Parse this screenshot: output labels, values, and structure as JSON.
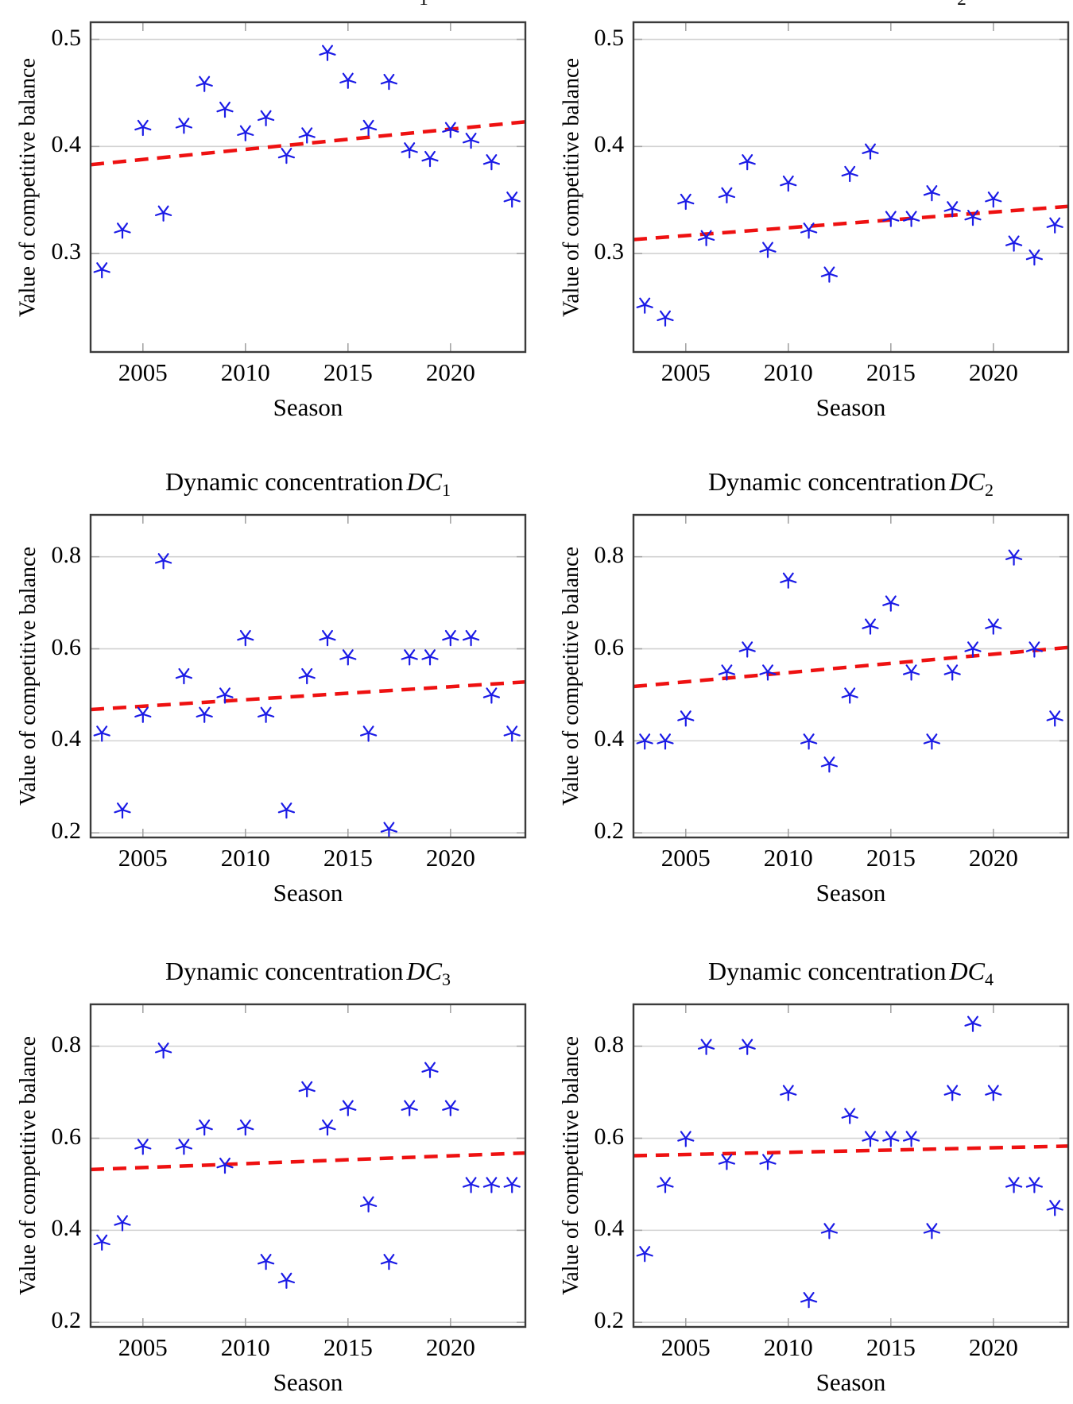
{
  "labels": {
    "ylabel": "Value of competitive balance",
    "xlabel": "Season"
  },
  "colors": {
    "background": "#ffffff",
    "marker": "#1b1be6",
    "trend": "#ee1111",
    "grid": "#d2d2d2",
    "frame": "#3b3b3b",
    "tick": "#a5a5a5",
    "text": "#000000"
  },
  "marker_shape": "five-ray-star",
  "top_edge_fragments": [
    {
      "text": "1",
      "x": 533
    },
    {
      "text": "2",
      "x": 1210
    }
  ],
  "chart_data": [
    {
      "id": "top-left",
      "type": "scatter",
      "title": null,
      "xlabel": "Season",
      "ylabel": "Value of competitive balance",
      "x": [
        2003,
        2004,
        2005,
        2006,
        2007,
        2008,
        2009,
        2010,
        2011,
        2012,
        2013,
        2014,
        2015,
        2016,
        2017,
        2018,
        2019,
        2020,
        2021,
        2022,
        2023
      ],
      "values": [
        0.285,
        0.322,
        0.418,
        0.338,
        0.42,
        0.459,
        0.435,
        0.413,
        0.427,
        0.392,
        0.411,
        0.488,
        0.462,
        0.418,
        0.461,
        0.397,
        0.389,
        0.416,
        0.406,
        0.386,
        0.351
      ],
      "trend": {
        "type": "linear-dashed",
        "start": 0.383,
        "end": 0.423
      },
      "xlim": [
        2002.45,
        2023.65
      ],
      "ylim": [
        0.208,
        0.516
      ],
      "yticks": [
        0.3,
        0.4,
        0.5
      ],
      "ytick_labels": [
        "0.3",
        "0.4",
        "0.5"
      ],
      "xticks": [
        2005,
        2010,
        2015,
        2020
      ],
      "xtick_labels": [
        "2005",
        "2010",
        "2015",
        "2020"
      ],
      "grid": "horizontal-only"
    },
    {
      "id": "top-right",
      "type": "scatter",
      "title": null,
      "xlabel": "Season",
      "ylabel": "Value of competitive balance",
      "x": [
        2003,
        2004,
        2005,
        2006,
        2007,
        2008,
        2009,
        2010,
        2011,
        2012,
        2013,
        2014,
        2015,
        2016,
        2017,
        2018,
        2019,
        2020,
        2021,
        2022,
        2023
      ],
      "values": [
        0.252,
        0.24,
        0.349,
        0.315,
        0.355,
        0.386,
        0.304,
        0.366,
        0.322,
        0.281,
        0.375,
        0.396,
        0.333,
        0.333,
        0.357,
        0.342,
        0.334,
        0.351,
        0.31,
        0.297,
        0.327
      ],
      "trend": {
        "type": "linear-dashed",
        "start": 0.313,
        "end": 0.344
      },
      "xlim": [
        2002.45,
        2023.65
      ],
      "ylim": [
        0.208,
        0.516
      ],
      "yticks": [
        0.3,
        0.4,
        0.5
      ],
      "ytick_labels": [
        "0.3",
        "0.4",
        "0.5"
      ],
      "xticks": [
        2005,
        2010,
        2015,
        2020
      ],
      "xtick_labels": [
        "2005",
        "2010",
        "2015",
        "2020"
      ],
      "grid": "horizontal-only"
    },
    {
      "id": "dc1",
      "type": "scatter",
      "title": {
        "prefix": "Dynamic concentration",
        "math": "DC",
        "sub": "1"
      },
      "xlabel": "Season",
      "ylabel": "Value of competitive balance",
      "x": [
        2003,
        2004,
        2005,
        2006,
        2007,
        2008,
        2009,
        2010,
        2011,
        2012,
        2013,
        2014,
        2015,
        2016,
        2017,
        2018,
        2019,
        2020,
        2021,
        2022,
        2023
      ],
      "values": [
        0.417,
        0.25,
        0.458,
        0.792,
        0.542,
        0.458,
        0.5,
        0.625,
        0.458,
        0.25,
        0.542,
        0.625,
        0.583,
        0.417,
        0.208,
        0.583,
        0.583,
        0.625,
        0.625,
        0.5,
        0.417
      ],
      "trend": {
        "type": "linear-dashed",
        "start": 0.468,
        "end": 0.528
      },
      "xlim": [
        2002.45,
        2023.65
      ],
      "ylim": [
        0.19,
        0.891
      ],
      "yticks": [
        0.2,
        0.4,
        0.6,
        0.8
      ],
      "ytick_labels": [
        "0.2",
        "0.4",
        "0.6",
        "0.8"
      ],
      "xticks": [
        2005,
        2010,
        2015,
        2020
      ],
      "xtick_labels": [
        "2005",
        "2010",
        "2015",
        "2020"
      ],
      "grid": "horizontal-only"
    },
    {
      "id": "dc2",
      "type": "scatter",
      "title": {
        "prefix": "Dynamic concentration",
        "math": "DC",
        "sub": "2"
      },
      "xlabel": "Season",
      "ylabel": "Value of competitive balance",
      "x": [
        2003,
        2004,
        2005,
        2006,
        2007,
        2008,
        2009,
        2010,
        2011,
        2012,
        2013,
        2014,
        2015,
        2016,
        2017,
        2018,
        2019,
        2020,
        2021,
        2022,
        2023
      ],
      "values": [
        0.4,
        0.4,
        0.45,
        null,
        0.55,
        0.6,
        0.55,
        0.75,
        0.4,
        0.35,
        0.5,
        0.65,
        0.7,
        0.55,
        0.4,
        0.55,
        0.6,
        0.65,
        0.8,
        0.6,
        0.45
      ],
      "trend": {
        "type": "linear-dashed",
        "start": 0.518,
        "end": 0.603
      },
      "xlim": [
        2002.45,
        2023.65
      ],
      "ylim": [
        0.19,
        0.891
      ],
      "yticks": [
        0.2,
        0.4,
        0.6,
        0.8
      ],
      "ytick_labels": [
        "0.2",
        "0.4",
        "0.6",
        "0.8"
      ],
      "xticks": [
        2005,
        2010,
        2015,
        2020
      ],
      "xtick_labels": [
        "2005",
        "2010",
        "2015",
        "2020"
      ],
      "grid": "horizontal-only"
    },
    {
      "id": "dc3",
      "type": "scatter",
      "title": {
        "prefix": "Dynamic concentration",
        "math": "DC",
        "sub": "3"
      },
      "xlabel": "Season",
      "ylabel": "Value of competitive balance",
      "x": [
        2003,
        2004,
        2005,
        2006,
        2007,
        2008,
        2009,
        2010,
        2011,
        2012,
        2013,
        2014,
        2015,
        2016,
        2017,
        2018,
        2019,
        2020,
        2021,
        2022,
        2023
      ],
      "values": [
        0.375,
        0.417,
        0.583,
        0.792,
        0.583,
        0.625,
        0.542,
        0.625,
        0.333,
        0.292,
        0.708,
        0.625,
        0.667,
        0.458,
        0.333,
        0.667,
        0.75,
        0.667,
        0.5,
        0.5,
        0.5
      ],
      "trend": {
        "type": "linear-dashed",
        "start": 0.532,
        "end": 0.568
      },
      "xlim": [
        2002.45,
        2023.65
      ],
      "ylim": [
        0.19,
        0.891
      ],
      "yticks": [
        0.2,
        0.4,
        0.6,
        0.8
      ],
      "ytick_labels": [
        "0.2",
        "0.4",
        "0.6",
        "0.8"
      ],
      "xticks": [
        2005,
        2010,
        2015,
        2020
      ],
      "xtick_labels": [
        "2005",
        "2010",
        "2015",
        "2020"
      ],
      "grid": "horizontal-only"
    },
    {
      "id": "dc4",
      "type": "scatter",
      "title": {
        "prefix": "Dynamic concentration",
        "math": "DC",
        "sub": "4"
      },
      "xlabel": "Season",
      "ylabel": "Value of competitive balance",
      "x": [
        2003,
        2004,
        2005,
        2006,
        2007,
        2008,
        2009,
        2010,
        2011,
        2012,
        2013,
        2014,
        2015,
        2016,
        2017,
        2018,
        2019,
        2020,
        2021,
        2022,
        2023
      ],
      "values": [
        0.35,
        0.5,
        0.6,
        0.8,
        0.55,
        0.8,
        0.55,
        0.7,
        0.25,
        0.4,
        0.65,
        0.6,
        0.6,
        0.6,
        0.4,
        0.7,
        0.85,
        0.7,
        0.5,
        0.5,
        0.45
      ],
      "trend": {
        "type": "linear-dashed",
        "start": 0.562,
        "end": 0.583
      },
      "xlim": [
        2002.45,
        2023.65
      ],
      "ylim": [
        0.19,
        0.891
      ],
      "yticks": [
        0.2,
        0.4,
        0.6,
        0.8
      ],
      "ytick_labels": [
        "0.2",
        "0.4",
        "0.6",
        "0.8"
      ],
      "xticks": [
        2005,
        2010,
        2015,
        2020
      ],
      "xtick_labels": [
        "2005",
        "2010",
        "2015",
        "2020"
      ],
      "grid": "horizontal-only"
    }
  ]
}
